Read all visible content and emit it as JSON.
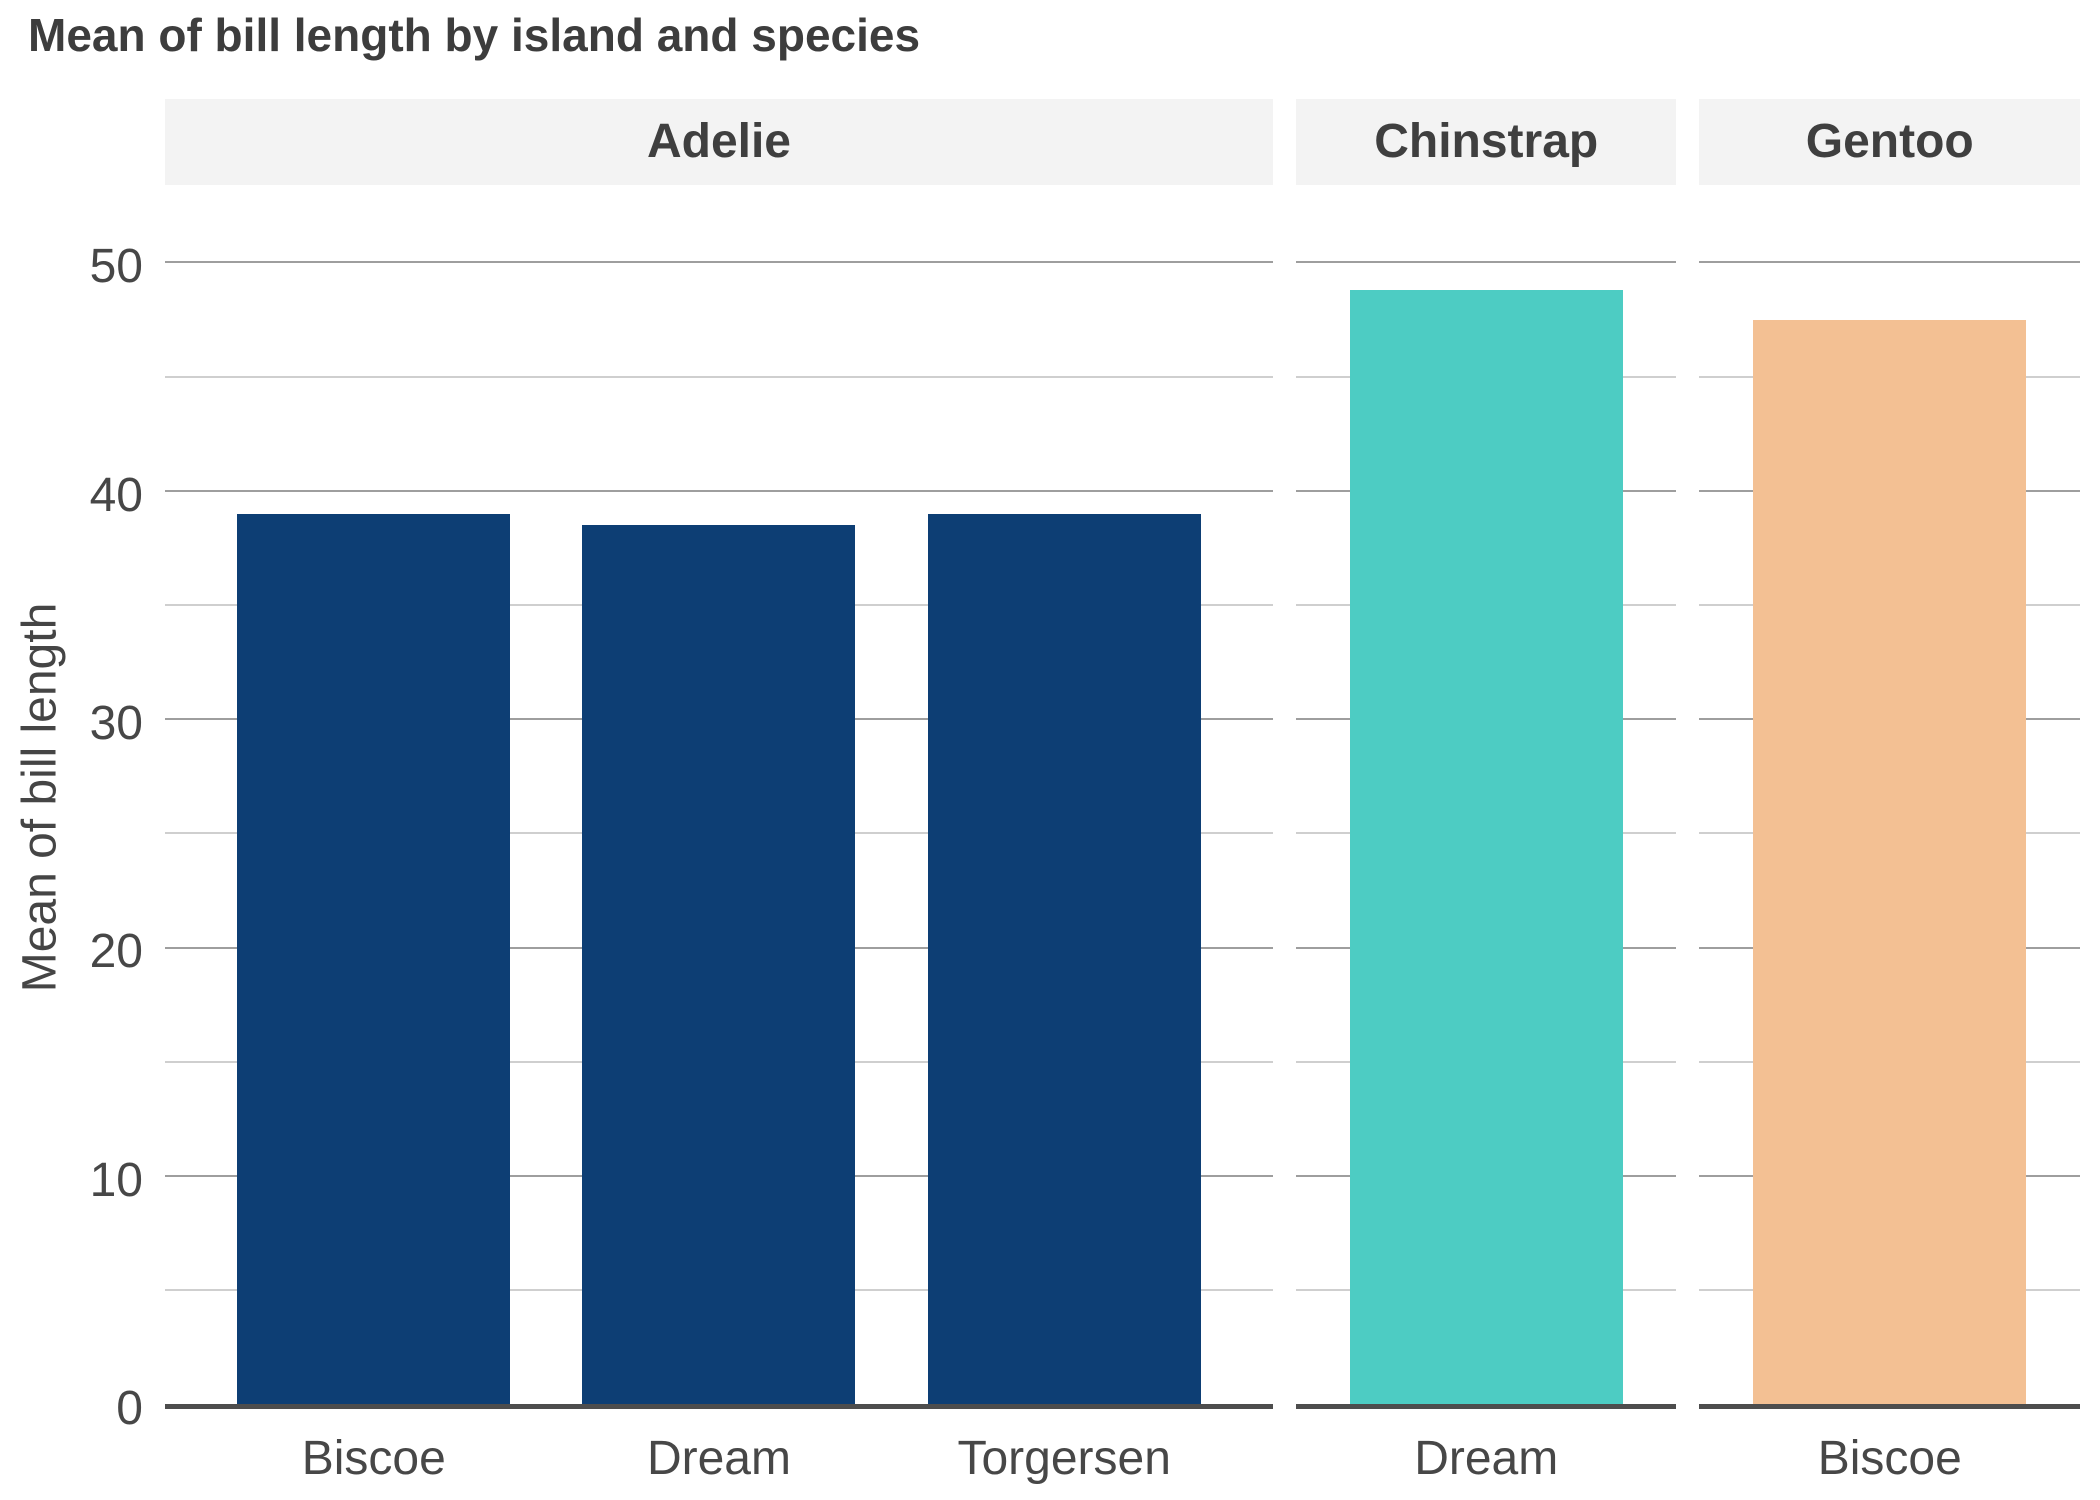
{
  "title": "Mean of bill length by island and species",
  "y_axis": {
    "label": "Mean of bill length",
    "major_ticks": [
      0,
      10,
      20,
      30,
      40,
      50
    ],
    "minor_ticks": [
      5,
      15,
      25,
      35,
      45
    ]
  },
  "chart_data": {
    "type": "bar",
    "title": "Mean of bill length by island and species",
    "xlabel": "",
    "ylabel": "Mean of bill length",
    "ylim": [
      0,
      53.6
    ],
    "yticks": [
      0,
      10,
      20,
      30,
      40,
      50
    ],
    "grid": "horizontal, minor gridlines every 5",
    "legend_position": "none",
    "facet_variable": "species",
    "category_variable": "island",
    "facets": [
      {
        "species": "Adelie",
        "bar_color": "#0d3e74",
        "categories": [
          "Biscoe",
          "Dream",
          "Torgersen"
        ],
        "values": [
          39.0,
          38.5,
          39.0
        ],
        "bars": [
          {
            "island": "Biscoe",
            "value": 39.0
          },
          {
            "island": "Dream",
            "value": 38.5
          },
          {
            "island": "Torgersen",
            "value": 39.0
          }
        ]
      },
      {
        "species": "Chinstrap",
        "bar_color": "#4dccc3",
        "categories": [
          "Dream"
        ],
        "values": [
          48.8
        ],
        "bars": [
          {
            "island": "Dream",
            "value": 48.8
          }
        ]
      },
      {
        "species": "Gentoo",
        "bar_color": "#f3c093",
        "categories": [
          "Biscoe"
        ],
        "values": [
          47.5
        ],
        "bars": [
          {
            "island": "Biscoe",
            "value": 47.5
          }
        ]
      }
    ]
  },
  "colors": {
    "title_text": "#3d3d3d",
    "axis_text": "#474747",
    "strip_background": "#f3f3f3",
    "strip_text": "#3f3f3f",
    "major_gridline": "#9e9e9e",
    "minor_gridline": "#cfcfcf",
    "axis_line": "#4d4d4d",
    "adelie_bar": "#0d3e74",
    "chinstrap_bar": "#4dccc3",
    "gentoo_bar": "#f3c093"
  }
}
